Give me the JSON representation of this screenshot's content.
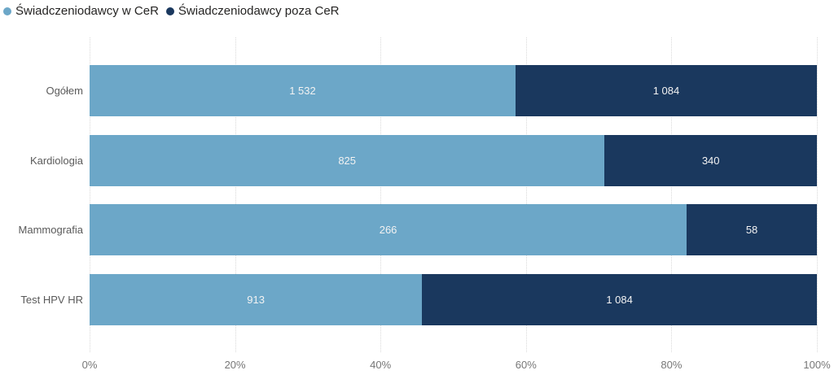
{
  "legend": [
    {
      "label": "Świadczeniodawcy w CeR",
      "color": "#6CA7C8"
    },
    {
      "label": "Świadczeniodawcy poza CeR",
      "color": "#1A385E"
    }
  ],
  "chart_data": {
    "type": "bar",
    "orientation": "horizontal",
    "stacked": "100%",
    "title": "",
    "xlabel": "",
    "ylabel": "",
    "categories": [
      "Ogółem",
      "Kardiologia",
      "Mammografia",
      "Test HPV HR"
    ],
    "series": [
      {
        "name": "Świadczeniodawcy w CeR",
        "color": "#6CA7C8",
        "values": [
          1532,
          825,
          266,
          913
        ],
        "labels": [
          "1 532",
          "825",
          "266",
          "913"
        ]
      },
      {
        "name": "Świadczeniodawcy poza CeR",
        "color": "#1A385E",
        "values": [
          1084,
          340,
          58,
          1084
        ],
        "labels": [
          "1 084",
          "340",
          "58",
          "1 084"
        ]
      }
    ],
    "x_ticks": [
      "0%",
      "20%",
      "40%",
      "60%",
      "80%",
      "100%"
    ],
    "xlim": [
      0,
      1
    ],
    "grid": "dotted-vertical",
    "legend_position": "top-left",
    "value_label_color": "#F2F2F2"
  }
}
